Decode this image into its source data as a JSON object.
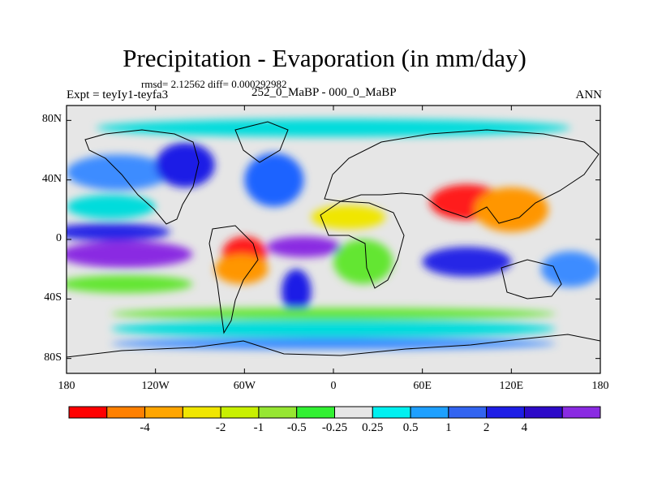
{
  "title": "Precipitation - Evaporation (in mm/day)",
  "stats": "rmsd= 2.12562 diff= 0.000292982",
  "experiment": "Expt = teyIy1-teyfa3",
  "subtitle": "252_0_MaBP - 000_0_MaBP",
  "season": "ANN",
  "map": {
    "lon_range": [
      -180,
      180
    ],
    "lat_range": [
      -90,
      90
    ],
    "x_ticks": [
      {
        "label": "180",
        "lon": -180
      },
      {
        "label": "120W",
        "lon": -120
      },
      {
        "label": "60W",
        "lon": -60
      },
      {
        "label": "0",
        "lon": 0
      },
      {
        "label": "60E",
        "lon": 60
      },
      {
        "label": "120E",
        "lon": 120
      },
      {
        "label": "180",
        "lon": 180
      }
    ],
    "y_ticks": [
      {
        "label": "80N",
        "lat": 80
      },
      {
        "label": "40N",
        "lat": 40
      },
      {
        "label": "0",
        "lat": 0
      },
      {
        "label": "40S",
        "lat": -40
      },
      {
        "label": "80S",
        "lat": -80
      }
    ],
    "ocean_background": "#e6e6e6",
    "features": [
      {
        "name": "equatorial-band-west",
        "color": "#2828e6",
        "lon": -150,
        "lat": 5,
        "rlon": 40,
        "rlat": 6
      },
      {
        "name": "south-pacific-purple",
        "color": "#8a2be2",
        "lon": -140,
        "lat": -10,
        "rlon": 45,
        "rlat": 9
      },
      {
        "name": "pacific-green-belt",
        "color": "#64e632",
        "lon": -140,
        "lat": -30,
        "rlon": 45,
        "rlat": 6
      },
      {
        "name": "north-pacific-blue",
        "color": "#3c8cff",
        "lon": -145,
        "lat": 45,
        "rlon": 35,
        "rlat": 12
      },
      {
        "name": "north-pacific-cyan",
        "color": "#00dcdc",
        "lon": -150,
        "lat": 22,
        "rlon": 30,
        "rlat": 8
      },
      {
        "name": "amazon-red",
        "color": "#ff1e1e",
        "lon": -60,
        "lat": -10,
        "rlon": 15,
        "rlat": 12
      },
      {
        "name": "amazon-orange",
        "color": "#ff9600",
        "lon": -62,
        "lat": -20,
        "rlon": 18,
        "rlat": 10
      },
      {
        "name": "north-america-blue",
        "color": "#1e1ee6",
        "lon": -100,
        "lat": 50,
        "rlon": 20,
        "rlat": 15
      },
      {
        "name": "north-atlantic-blue",
        "color": "#1e64ff",
        "lon": -40,
        "lat": 40,
        "rlon": 20,
        "rlat": 18
      },
      {
        "name": "atlantic-purple",
        "color": "#8a2be2",
        "lon": -20,
        "lat": -5,
        "rlon": 25,
        "rlat": 7
      },
      {
        "name": "south-atlantic-blue",
        "color": "#1e1ee6",
        "lon": -25,
        "lat": -35,
        "rlon": 10,
        "rlat": 15
      },
      {
        "name": "africa-yellow",
        "color": "#f0e600",
        "lon": 10,
        "lat": 15,
        "rlon": 25,
        "rlat": 8
      },
      {
        "name": "africa-green",
        "color": "#64e632",
        "lon": 20,
        "lat": -15,
        "rlon": 20,
        "rlat": 15
      },
      {
        "name": "asia-red",
        "color": "#ff1e1e",
        "lon": 90,
        "lat": 25,
        "rlon": 25,
        "rlat": 12
      },
      {
        "name": "asia-orange",
        "color": "#ff9600",
        "lon": 120,
        "lat": 20,
        "rlon": 25,
        "rlat": 15
      },
      {
        "name": "indian-ocean-blue",
        "color": "#2828e6",
        "lon": 90,
        "lat": -15,
        "rlon": 30,
        "rlat": 10
      },
      {
        "name": "east-pacific-blue",
        "color": "#3c8cff",
        "lon": 160,
        "lat": -20,
        "rlon": 20,
        "rlat": 12
      },
      {
        "name": "south-ocean-cyan",
        "color": "#00dcdc",
        "lon": 0,
        "lat": -60,
        "rlon": 150,
        "rlat": 6
      },
      {
        "name": "south-ocean-green",
        "color": "#64e632",
        "lon": 0,
        "lat": -50,
        "rlon": 150,
        "rlat": 4
      },
      {
        "name": "arctic-cyan",
        "color": "#00dcdc",
        "lon": 0,
        "lat": 75,
        "rlon": 160,
        "rlat": 6
      },
      {
        "name": "antarctic-blue",
        "color": "#3c8cff",
        "lon": 0,
        "lat": -70,
        "rlon": 150,
        "rlat": 4
      }
    ]
  },
  "colorbar": {
    "colors": [
      "#ff0000",
      "#ff8000",
      "#ffa500",
      "#f0e600",
      "#c8f000",
      "#96e632",
      "#32f032",
      "#e6e6e6",
      "#00f0f0",
      "#1ea0ff",
      "#3264f0",
      "#1e1ee6",
      "#2d0ac8",
      "#8a2be2"
    ],
    "labels": [
      "-4",
      "-2",
      "-1",
      "-0.5",
      "-0.25",
      "0.25",
      "0.5",
      "1",
      "2",
      "4"
    ],
    "label_edges": [
      2,
      4,
      5,
      6,
      7,
      8,
      9,
      10,
      11,
      12
    ]
  }
}
